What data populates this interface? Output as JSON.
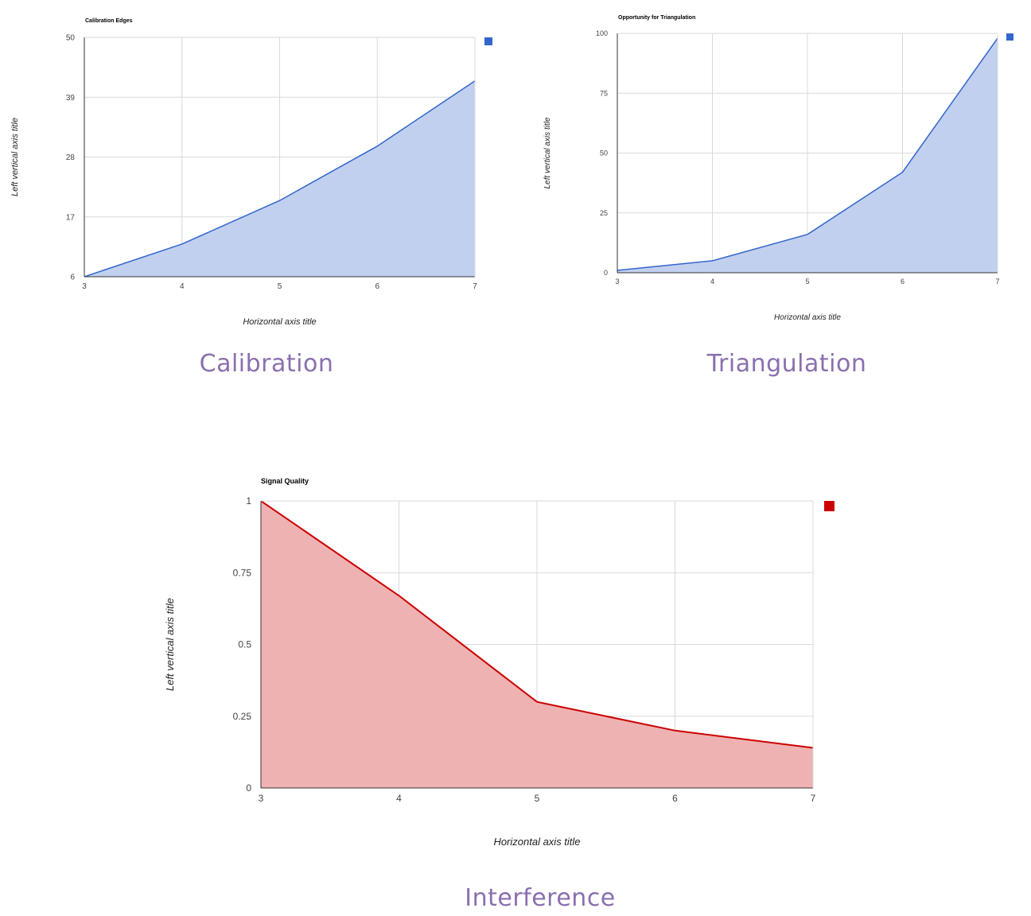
{
  "colors": {
    "blue_line": "#3366cc",
    "blue_fill": "#c2d0ef",
    "red_line": "#cc0000",
    "red_fill": "#efb2b2",
    "caption": "#8a6fae"
  },
  "captions": {
    "calibration": "Calibration",
    "triangulation": "Triangulation",
    "interference": "Interference"
  },
  "chart_data": [
    {
      "id": "calibration",
      "type": "area",
      "title": "Calibration Edges",
      "xlabel": "Horizontal axis title",
      "ylabel": "Left vertical axis title",
      "x": [
        3,
        4,
        5,
        6,
        7
      ],
      "series": [
        {
          "values": [
            6,
            12,
            20,
            30,
            42
          ],
          "color": "#3366cc"
        }
      ],
      "xlim": [
        3,
        7
      ],
      "ylim": [
        6,
        50
      ],
      "xticks": [
        3,
        4,
        5,
        6,
        7
      ],
      "yticks": [
        6,
        17,
        28,
        39,
        50
      ],
      "grid": true,
      "legend": "top-right"
    },
    {
      "id": "triangulation",
      "type": "area",
      "title": "Opportunity for Triangulation",
      "xlabel": "Horizontal axis title",
      "ylabel": "Left vertical axis title",
      "x": [
        3,
        4,
        5,
        6,
        7
      ],
      "series": [
        {
          "values": [
            1,
            5,
            16,
            42,
            98
          ],
          "color": "#3366cc"
        }
      ],
      "xlim": [
        3,
        7
      ],
      "ylim": [
        0,
        100
      ],
      "xticks": [
        3,
        4,
        5,
        6,
        7
      ],
      "yticks": [
        0,
        25,
        50,
        75,
        100
      ],
      "grid": true,
      "legend": "top-right"
    },
    {
      "id": "interference",
      "type": "area",
      "title": "Signal Quality",
      "xlabel": "Horizontal axis title",
      "ylabel": "Left vertical axis title",
      "x": [
        3,
        4,
        5,
        6,
        7
      ],
      "series": [
        {
          "values": [
            1,
            0.67,
            0.3,
            0.2,
            0.14
          ],
          "color": "#cc0000"
        }
      ],
      "xlim": [
        3,
        7
      ],
      "ylim": [
        0,
        1
      ],
      "xticks": [
        3,
        4,
        5,
        6,
        7
      ],
      "yticks": [
        0,
        0.25,
        0.5,
        0.75,
        1
      ],
      "grid": true,
      "legend": "top-right"
    }
  ]
}
